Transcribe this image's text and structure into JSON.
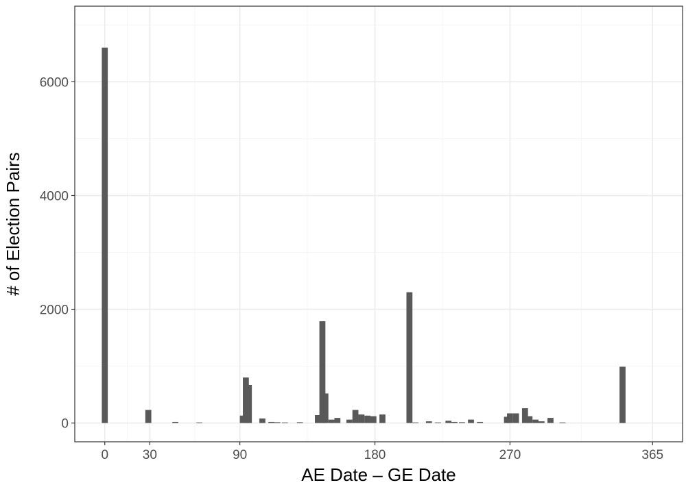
{
  "chart_data": {
    "type": "bar",
    "xlabel": "AE Date – GE Date",
    "ylabel": "# of Election Pairs",
    "xlim": [
      -20,
      385
    ],
    "ylim": [
      -330,
      7330
    ],
    "x_ticks": [
      0,
      30,
      90,
      180,
      270,
      365
    ],
    "x_minor_ticks": [
      15,
      60,
      135,
      225,
      317.5
    ],
    "y_ticks": [
      0,
      2000,
      4000,
      6000
    ],
    "y_minor_ticks": [
      1000,
      3000,
      5000,
      7000
    ],
    "grid": true,
    "bar_width": 4,
    "bar_color": "#595959",
    "x": [
      0,
      29,
      47,
      63,
      92,
      94,
      96,
      105,
      111,
      115,
      120,
      130,
      142,
      145,
      147,
      151,
      155,
      163,
      167,
      171,
      175,
      179,
      185,
      203,
      207,
      216,
      222,
      229,
      233,
      238,
      244,
      250,
      268,
      270,
      274,
      280,
      283,
      287,
      291,
      297,
      305,
      345
    ],
    "values": [
      6600,
      230,
      20,
      10,
      130,
      800,
      670,
      80,
      20,
      15,
      10,
      15,
      140,
      1790,
      520,
      60,
      90,
      60,
      230,
      150,
      130,
      120,
      150,
      2300,
      10,
      30,
      10,
      40,
      20,
      15,
      60,
      20,
      110,
      170,
      170,
      260,
      120,
      60,
      30,
      90,
      10,
      990
    ]
  },
  "colors": {
    "panel_border": "#333333",
    "grid_major": "#ebebeb",
    "grid_minor": "#f5f5f5",
    "tick_text": "#4d4d4d"
  }
}
